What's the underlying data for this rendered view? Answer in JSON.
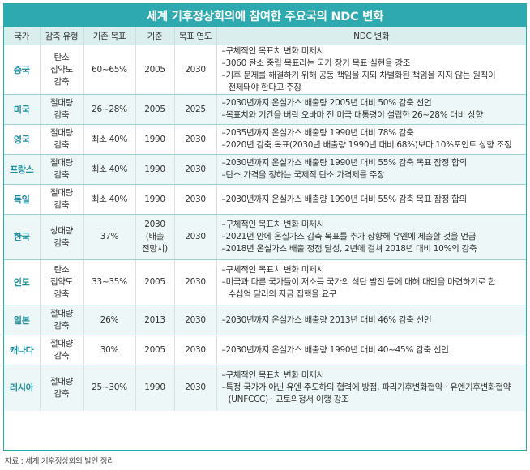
{
  "title": "세계 기후정상회의에 참여한 주요국의 NDC 변화",
  "headers": [
    "국가",
    "감축 유형",
    "기존 목표",
    "기준",
    "목표 연도",
    "NDC 변화"
  ],
  "rows": [
    {
      "country": "중국",
      "type": "탄소 집약도 감축",
      "prev_target": "60~65%",
      "base": "2005",
      "target_year": "2030",
      "ndc": [
        "–구체적인 목표치 변화 미제시",
        "–3060 탄소 중립 목표라는 국가 장기 목표 실현을 강조",
        "–기후 문제를 해결하기 위해 공동 책임을 지되 차별화된 책임을 지지 않는 원칙이",
        "전제돼야 한다고 주장"
      ]
    },
    {
      "country": "미국",
      "type": "절대량 감축",
      "prev_target": "26~28%",
      "base": "2005",
      "target_year": "2025",
      "ndc": [
        "–2030년까지 온실가스 배출량 2005년 대비 50% 감축 선언",
        "–목표치와 기간을 버락 오바마 전 미국 대통령이 설립한 26~28% 대비 상향"
      ]
    },
    {
      "country": "영국",
      "type": "절대량 감축",
      "prev_target": "최소 40%",
      "base": "1990",
      "target_year": "2030",
      "ndc": [
        "–2035년까지 온실가스 배출량 1990년 대비 78% 감축",
        "–2020년 감축 목표(2030년 배출량 1990년 대비 68%)보다 10%포인트 상향 조정"
      ]
    },
    {
      "country": "프랑스",
      "type": "절대량 감축",
      "prev_target": "최소 40%",
      "base": "1990",
      "target_year": "2030",
      "ndc": [
        "–2030년까지 온실가스 배출량 1990년 대비 55% 감축 목표 잠정 합의",
        "–탄소 가격을 정하는 국제적 탄소 가격제를 주장"
      ]
    },
    {
      "country": "독일",
      "type": "절대량 감축",
      "prev_target": "최소 40%",
      "base": "1990",
      "target_year": "2030",
      "ndc": [
        "–2030년까지 온실가스 배출량 1990년 대비 55% 감축 목표 잠정 합의"
      ]
    },
    {
      "country": "한국",
      "type": "상대량 감축",
      "prev_target": "37%",
      "base": "2030 (배출 전망치)",
      "target_year": "2030",
      "ndc": [
        "–구체적인 목표치 변화 미제시",
        "–2021년 안에 온실가스 감축 목표를 추가 상향해 유엔에 제출할 것을 언급",
        "–2018년 온실가스 배출 정점 달성, 2년에 걸쳐 2018년 대비 10%의 감축"
      ]
    },
    {
      "country": "인도",
      "type": "탄소 집약도 감축",
      "prev_target": "33~35%",
      "base": "2005",
      "target_year": "2030",
      "ndc": [
        "–구체적인 목표치 변화 미제시",
        "–미국과 다른 국가들이 저소득 국가의 석탄 발전 등에 대해 대안을 마련하기로 한",
        "수십억 달러의 지금 집행을 요구"
      ]
    },
    {
      "country": "일본",
      "type": "절대량 감축",
      "prev_target": "26%",
      "base": "2013",
      "target_year": "2030",
      "ndc": [
        "–2030년까지 온실가스 배출량 2013년 대비 46% 감축 선언"
      ]
    },
    {
      "country": "캐나다",
      "type": "절대량 감축",
      "prev_target": "30%",
      "base": "2005",
      "target_year": "2030",
      "ndc": [
        "–2030년까지 온실가스 배출량 1990년 대비 40~45% 감축 선언"
      ]
    },
    {
      "country": "러시아",
      "type": "절대량 감축",
      "prev_target": "25~30%",
      "base": "1990",
      "target_year": "2030",
      "ndc": [
        "–구체적인 목표치 변화 미제시",
        "–특정 국가가 아닌 유엔 주도하의 협력에 방점, 파리기후변화협약 · 유엔기후변화협약",
        "(UNFCCC) · 교토의정서 이행 강조"
      ]
    }
  ],
  "source": "자료 : 세계 기후정상회의 발언 정리",
  "colors": {
    "accent": "#2fa9b0",
    "header_bg": "#dbeeee",
    "country_text": "#1f8fa0",
    "row_alt": "#eef7f7"
  }
}
